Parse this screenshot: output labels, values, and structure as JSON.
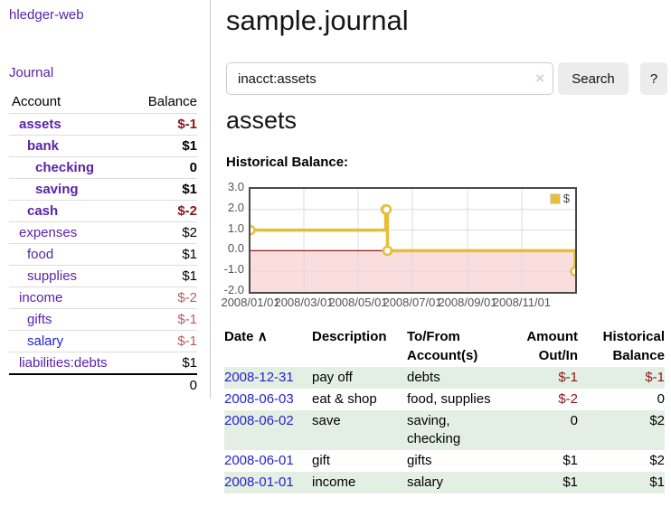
{
  "sidebar": {
    "brand": "hledger-web",
    "nav": {
      "journal": "Journal"
    },
    "accounts": {
      "headers": {
        "account": "Account",
        "balance": "Balance"
      },
      "rows": [
        {
          "name": "assets",
          "balance": "$-1",
          "depth": 1
        },
        {
          "name": "bank",
          "balance": "$1",
          "depth": 2
        },
        {
          "name": "checking",
          "balance": "0",
          "depth": 3
        },
        {
          "name": "saving",
          "balance": "$1",
          "depth": 3
        },
        {
          "name": "cash",
          "balance": "$-2",
          "depth": 2
        },
        {
          "name": "expenses",
          "balance": "$2",
          "depth": 1
        },
        {
          "name": "food",
          "balance": "$1",
          "depth": 2
        },
        {
          "name": "supplies",
          "balance": "$1",
          "depth": 2
        },
        {
          "name": "income",
          "balance": "$-2",
          "depth": 1
        },
        {
          "name": "gifts",
          "balance": "$-1",
          "depth": 2
        },
        {
          "name": "salary",
          "balance": "$-1",
          "depth": 2
        },
        {
          "name": "liabilities:debts",
          "balance": "$1",
          "depth": 1
        }
      ],
      "total": "0"
    }
  },
  "main": {
    "title": "sample.journal",
    "search": {
      "value": "inacct:assets",
      "clear_icon": "×",
      "search_label": "Search",
      "help_label": "?"
    },
    "account_heading": "assets",
    "chart_title": "Historical Balance:"
  },
  "chart_data": {
    "type": "line",
    "step": true,
    "title": "Historical Balance",
    "series": [
      {
        "name": "$",
        "color": "#e6be3c",
        "points": [
          [
            "2008-01-01",
            1
          ],
          [
            "2008-06-01",
            2
          ],
          [
            "2008-06-02",
            2
          ],
          [
            "2008-06-03",
            0
          ],
          [
            "2008-12-31",
            -1
          ]
        ]
      }
    ],
    "xlim": [
      "2008-01-01",
      "2008-12-31"
    ],
    "ylim": [
      -2,
      3
    ],
    "yticks": [
      "3.0",
      "2.0",
      "1.0",
      "0.0",
      "-1.0",
      "-2.0"
    ],
    "xticks": [
      "2008/01/01",
      "2008/03/01",
      "2008/05/01",
      "2008/07/01",
      "2008/09/01",
      "2008/11/01"
    ],
    "legend": {
      "label": "$",
      "position": "top-right"
    },
    "grid": true,
    "grid_color": "#dcdcdc",
    "negative_region_color": "#fadddd",
    "zero_line_color": "#8f1e1e"
  },
  "register_table": {
    "headers": {
      "date": "Date",
      "sort_indicator": "∧",
      "description": "Description",
      "account": "To/From Account(s)",
      "amount": "Amount Out/In",
      "balance": "Historical Balance"
    },
    "rows": [
      {
        "date": "2008-12-31",
        "description": "pay off",
        "accounts": "debts",
        "amount": "$-1",
        "balance": "$-1"
      },
      {
        "date": "2008-06-03",
        "description": "eat & shop",
        "accounts": "food, supplies",
        "amount": "$-2",
        "balance": "0"
      },
      {
        "date": "2008-06-02",
        "description": "save",
        "accounts": "saving, checking",
        "amount": "0",
        "balance": "$2"
      },
      {
        "date": "2008-06-01",
        "description": "gift",
        "accounts": "gifts",
        "amount": "$1",
        "balance": "$2"
      },
      {
        "date": "2008-01-01",
        "description": "income",
        "accounts": "salary",
        "amount": "$1",
        "balance": "$1"
      }
    ]
  }
}
